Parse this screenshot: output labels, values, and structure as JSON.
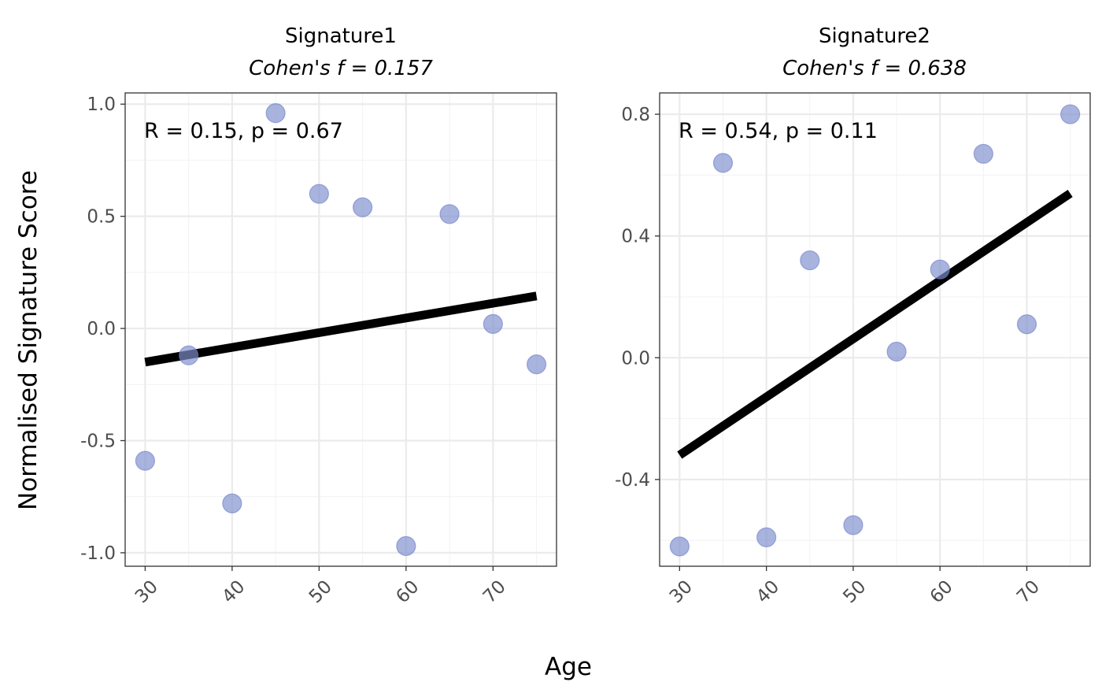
{
  "colors": {
    "point_fill": "#7f8fcf",
    "point_stroke": "#6a7cc4",
    "line": "#000000",
    "grid": "#ebebeb"
  },
  "shared": {
    "xlabel": "Age",
    "ylabel": "Normalised Signature Score"
  },
  "chart_data": [
    {
      "type": "scatter",
      "title": "Signature1",
      "subtitle": "Cohen's f = 0.157",
      "annotation": "R = 0.15, p = 0.67",
      "xlim": [
        27.7,
        77.3
      ],
      "ylim": [
        -1.06,
        1.05
      ],
      "x_ticks": [
        30,
        40,
        50,
        60,
        70
      ],
      "x_tick_labels": [
        "30",
        "40",
        "50",
        "60",
        "70"
      ],
      "y_ticks": [
        -1.0,
        -0.5,
        0.0,
        0.5,
        1.0
      ],
      "y_tick_labels": [
        "-1.0",
        "-0.5",
        "0.0",
        "0.5",
        "1.0"
      ],
      "points": [
        {
          "x": 30,
          "y": -0.59
        },
        {
          "x": 35,
          "y": -0.12
        },
        {
          "x": 40,
          "y": -0.78
        },
        {
          "x": 45,
          "y": 0.96
        },
        {
          "x": 50,
          "y": 0.6
        },
        {
          "x": 55,
          "y": 0.54
        },
        {
          "x": 60,
          "y": -0.97
        },
        {
          "x": 65,
          "y": 0.51
        },
        {
          "x": 70,
          "y": 0.02
        },
        {
          "x": 75,
          "y": -0.16
        }
      ],
      "fit_line": {
        "x": [
          30,
          75
        ],
        "y": [
          -0.15,
          0.145
        ]
      },
      "grid": true
    },
    {
      "type": "scatter",
      "title": "Signature2",
      "subtitle": "Cohen's f = 0.638",
      "annotation": "R = 0.54, p = 0.11",
      "xlim": [
        27.7,
        77.3
      ],
      "ylim": [
        -0.685,
        0.87
      ],
      "x_ticks": [
        30,
        40,
        50,
        60,
        70
      ],
      "x_tick_labels": [
        "30",
        "40",
        "50",
        "60",
        "70"
      ],
      "y_ticks": [
        -0.4,
        0.0,
        0.4,
        0.8
      ],
      "y_tick_labels": [
        "-0.4",
        "0.0",
        "0.4",
        "0.8"
      ],
      "points": [
        {
          "x": 30,
          "y": -0.62
        },
        {
          "x": 35,
          "y": 0.64
        },
        {
          "x": 40,
          "y": -0.59
        },
        {
          "x": 45,
          "y": 0.32
        },
        {
          "x": 50,
          "y": -0.55
        },
        {
          "x": 55,
          "y": 0.02
        },
        {
          "x": 60,
          "y": 0.29
        },
        {
          "x": 65,
          "y": 0.67
        },
        {
          "x": 70,
          "y": 0.11
        },
        {
          "x": 75,
          "y": 0.8
        }
      ],
      "fit_line": {
        "x": [
          30,
          75
        ],
        "y": [
          -0.32,
          0.54
        ]
      },
      "grid": true
    }
  ]
}
